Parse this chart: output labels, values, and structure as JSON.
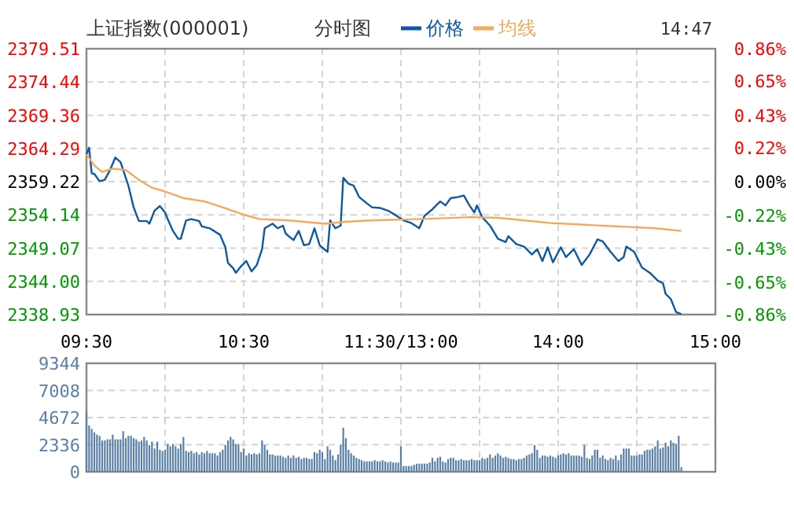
{
  "chart_data": [
    {
      "type": "line",
      "title": "上证指数(000001)",
      "subtitle": "分时图",
      "annotations": [
        "14:47"
      ],
      "legend": "top",
      "grid": true,
      "categories": [
        "09:30",
        null,
        null,
        null,
        null,
        null,
        null,
        null,
        null,
        null,
        null,
        null,
        null,
        null,
        null,
        null,
        null,
        null,
        null,
        null,
        null,
        null,
        null,
        null,
        null,
        null,
        null,
        null,
        null,
        null,
        null,
        null,
        null,
        null,
        null,
        null,
        null,
        null,
        null,
        null,
        null,
        null,
        null,
        null,
        null,
        null,
        null,
        null,
        null,
        null,
        null,
        null,
        null,
        null,
        null,
        null,
        null,
        null,
        null,
        null,
        "10:30",
        null,
        null,
        null,
        null,
        null,
        null,
        null,
        null,
        null,
        null,
        null,
        null,
        null,
        null,
        null,
        null,
        null,
        null,
        null,
        null,
        null,
        null,
        null,
        null,
        null,
        null,
        null,
        null,
        null,
        null,
        null,
        null,
        null,
        null,
        null,
        null,
        null,
        null,
        null,
        null,
        null,
        null,
        null,
        null,
        null,
        null,
        null,
        null,
        null,
        null,
        null,
        null,
        null,
        null,
        null,
        null,
        null,
        null,
        null,
        "11:30/13:00",
        null,
        null,
        null,
        null,
        null,
        null,
        null,
        null,
        null,
        null,
        null,
        null,
        null,
        null,
        null,
        null,
        null,
        null,
        null,
        null,
        null,
        null,
        null,
        null,
        null,
        null,
        null,
        null,
        null,
        null,
        null,
        null,
        null,
        null,
        null,
        null,
        null,
        null,
        null,
        null,
        null,
        null,
        null,
        null,
        null,
        null,
        null,
        null,
        null,
        null,
        null,
        null,
        null,
        null,
        null,
        null,
        null,
        null,
        null,
        "14:00",
        null,
        null,
        null,
        null,
        null,
        null,
        null,
        null,
        null,
        null,
        null,
        null,
        null,
        null,
        null,
        null,
        null,
        null,
        null,
        null,
        null,
        null,
        null,
        null,
        null,
        null,
        null,
        null,
        null,
        null,
        null,
        null,
        null,
        null,
        null,
        null,
        null,
        null,
        null,
        null,
        null,
        null,
        null,
        null,
        null,
        null,
        null,
        null,
        null,
        null,
        null,
        null,
        null,
        null,
        null,
        null,
        null,
        null,
        null,
        "15:00"
      ],
      "ylim": [
        2338.93,
        2379.51
      ],
      "yticks": [
        2338.93,
        {
          "value": 2344,
          "label": "2344.00"
        },
        2349.07,
        2354.14,
        2359.22,
        2364.29,
        2369.36,
        2374.44,
        2379.51
      ],
      "y2lim": [
        -0.86,
        0.86
      ],
      "y2ticks": [
        {
          "value": -0.86,
          "label": "-0.86%"
        },
        {
          "value": -0.65,
          "label": "-0.65%"
        },
        {
          "value": -0.43,
          "label": "-0.43%"
        },
        {
          "value": -0.22,
          "label": "-0.22%"
        },
        {
          "value": 0,
          "label": "0.00%"
        },
        {
          "value": 0.22,
          "label": "0.22%"
        },
        {
          "value": 0.43,
          "label": "0.43%"
        },
        {
          "value": 0.65,
          "label": "0.65%"
        },
        {
          "value": 0.86,
          "label": "0.86%"
        }
      ],
      "series": [
        {
          "name": "价格",
          "color": "#0c5aa6",
          "values": [
            2363.4,
            2364.4,
            2360.5,
            2360.4,
            null,
            2359.3,
            null,
            2359.5,
            null,
            2361.0,
            null,
            2362.9,
            null,
            2362.2,
            2361.0,
            null,
            2358.6,
            null,
            2355.3,
            null,
            2353.2,
            null,
            null,
            2353.2,
            2352.8,
            null,
            2354.8,
            null,
            2355.5,
            null,
            2354.5,
            2353.5,
            null,
            2351.7,
            null,
            2350.5,
            2350.5,
            null,
            2353.3,
            null,
            2353.5,
            null,
            null,
            2353.2,
            2352.4,
            null,
            null,
            2352.1,
            null,
            null,
            null,
            2351.1,
            null,
            2349.2,
            2346.8,
            null,
            2346.0,
            2345.3,
            null,
            2346.3,
            null,
            2347.1,
            null,
            2345.5,
            null,
            2346.5,
            null,
            2348.9,
            2352.1,
            null,
            null,
            2352.8,
            null,
            2352.1,
            null,
            2352.5,
            2351.3,
            null,
            null,
            2350.3,
            null,
            2351.7,
            null,
            2349.5,
            null,
            2349.7,
            null,
            2352.1,
            null,
            2349.5,
            null,
            null,
            2348.5,
            2353.3,
            null,
            2352.1,
            null,
            2352.5,
            2359.8,
            null,
            2358.9,
            null,
            2358.6,
            null,
            2356.9,
            null,
            null,
            2355.9,
            null,
            2355.3,
            null,
            null,
            2355.2,
            null,
            null,
            2354.8,
            null,
            null,
            2354.1,
            null,
            null,
            2353.3,
            null,
            null,
            2352.9,
            null,
            null,
            2352.1,
            null,
            2354.0,
            null,
            null,
            2355.0,
            null,
            null,
            2356.2,
            null,
            2355.6,
            null,
            2356.7,
            null,
            null,
            2356.9,
            null,
            2357.1,
            null,
            2355.7,
            null,
            2354.5,
            2355.6,
            null,
            2353.8,
            null,
            null,
            2352.5,
            null,
            null,
            2350.5,
            null,
            null,
            2350.0,
            2350.9,
            null,
            null,
            2349.7,
            null,
            null,
            2349.3,
            null,
            null,
            2348.1,
            null,
            2348.9,
            null,
            2347.1,
            null,
            2349.2,
            null,
            2346.9,
            null,
            null,
            2349.2,
            null,
            2347.7,
            null,
            null,
            2348.9,
            null,
            null,
            2346.5,
            null,
            null,
            2348.1,
            null,
            null,
            2350.4,
            null,
            2350.1,
            null,
            null,
            2348.5,
            null,
            null,
            2347.1,
            null,
            2347.7,
            2349.3,
            null,
            null,
            2348.5,
            null,
            null,
            2346.1,
            null,
            null,
            2345.3,
            null,
            null,
            2344.1,
            null,
            2343.7,
            2342.1,
            null,
            2341.3,
            null,
            2339.3,
            null,
            2339.0,
            null,
            null,
            null,
            null,
            null,
            null,
            null,
            null,
            null,
            null,
            null,
            null,
            null
          ]
        },
        {
          "name": "均线",
          "color": "#f5a95e",
          "values": [
            2363.4,
            null,
            null,
            2361.7,
            null,
            null,
            2360.7,
            null,
            null,
            null,
            2361.2,
            null,
            null,
            null,
            null,
            2361.0,
            null,
            null,
            null,
            null,
            2359.5,
            null,
            null,
            null,
            null,
            2358.3,
            null,
            null,
            null,
            null,
            2357.7,
            null,
            null,
            null,
            null,
            null,
            null,
            2356.7,
            null,
            null,
            null,
            null,
            null,
            null,
            null,
            2356.2,
            null,
            null,
            null,
            null,
            null,
            null,
            2355.3,
            null,
            null,
            null,
            null,
            null,
            null,
            2354.3,
            null,
            null,
            null,
            null,
            null,
            null,
            2353.5,
            null,
            null,
            null,
            null,
            null,
            null,
            null,
            null,
            null,
            null,
            2353.3,
            null,
            null,
            null,
            null,
            null,
            null,
            null,
            null,
            null,
            null,
            null,
            null,
            null,
            2352.8,
            null,
            null,
            null,
            null,
            null,
            null,
            null,
            2353.1,
            null,
            null,
            null,
            null,
            null,
            null,
            null,
            null,
            null,
            2353.3,
            null,
            null,
            null,
            null,
            null,
            null,
            null,
            null,
            null,
            null,
            null,
            null,
            null,
            null,
            null,
            null,
            null,
            2353.5,
            null,
            null,
            null,
            null,
            null,
            null,
            null,
            null,
            null,
            null,
            null,
            null,
            null,
            null,
            null,
            null,
            null,
            null,
            null,
            2353.8,
            null,
            null,
            null,
            null,
            null,
            null,
            null,
            null,
            null,
            2353.7,
            null,
            null,
            null,
            null,
            null,
            null,
            null,
            null,
            null,
            2353.3,
            null,
            null,
            null,
            null,
            null,
            null,
            null,
            null,
            null,
            2352.9,
            null,
            null,
            null,
            null,
            null,
            null,
            null,
            null,
            null,
            2352.7,
            null,
            null,
            null,
            null,
            null,
            null,
            null,
            null,
            null,
            2352.5,
            null,
            null,
            null,
            null,
            null,
            null,
            null,
            null,
            null,
            2352.3,
            null,
            null,
            null,
            null,
            null,
            null,
            null,
            null,
            null,
            2352.1,
            null,
            null,
            null,
            null,
            null,
            null,
            null,
            null,
            null,
            2351.7,
            null,
            null,
            null,
            null,
            null,
            null,
            null,
            null,
            null,
            null,
            null,
            null,
            null
          ]
        }
      ]
    },
    {
      "type": "bar",
      "color": "#5a80a8",
      "grid": true,
      "tick_labels": "y",
      "categories": [
        null,
        null,
        null,
        null,
        null,
        null,
        null,
        null,
        null,
        null,
        null,
        null,
        null,
        null,
        null,
        null,
        null,
        null,
        null,
        null,
        null,
        null,
        null,
        null,
        null,
        null,
        null,
        null,
        null,
        null,
        null,
        null,
        null,
        null,
        null,
        null,
        null,
        null,
        null,
        null,
        null,
        null,
        null,
        null,
        null,
        null,
        null,
        null,
        null,
        null,
        null,
        null,
        null,
        null,
        null,
        null,
        null,
        null,
        null,
        null,
        null,
        null,
        null,
        null,
        null,
        null,
        null,
        null,
        null,
        null,
        null,
        null,
        null,
        null,
        null,
        null,
        null,
        null,
        null,
        null,
        null,
        null,
        null,
        null,
        null,
        null,
        null,
        null,
        null,
        null,
        null,
        null,
        null,
        null,
        null,
        null,
        null,
        null,
        null,
        null,
        null,
        null,
        null,
        null,
        null,
        null,
        null,
        null,
        null,
        null,
        null,
        null,
        null,
        null,
        null,
        null,
        null,
        null,
        null,
        null,
        null,
        null,
        null,
        null,
        null,
        null,
        null,
        null,
        null,
        null,
        null,
        null,
        null,
        null,
        null,
        null,
        null,
        null,
        null,
        null,
        null,
        null,
        null,
        null,
        null,
        null,
        null,
        null,
        null,
        null,
        null,
        null,
        null,
        null,
        null,
        null,
        null,
        null,
        null,
        null,
        null,
        null,
        null,
        null,
        null,
        null,
        null,
        null,
        null,
        null,
        null,
        null,
        null,
        null,
        null,
        null,
        null,
        null,
        null,
        null,
        null,
        null,
        null,
        null,
        null,
        null,
        null,
        null,
        null,
        null,
        null,
        null,
        null,
        null,
        null,
        null,
        null,
        null,
        null,
        null,
        null,
        null,
        null,
        null,
        null,
        null,
        null,
        null,
        null,
        null,
        null,
        null,
        null,
        null,
        null,
        null,
        null,
        null,
        null,
        null,
        null,
        null,
        null,
        null,
        null,
        null,
        null,
        null,
        null,
        null,
        null,
        null,
        null,
        null,
        null,
        null,
        null,
        null,
        null,
        null,
        null
      ],
      "ylim": [
        0,
        9344
      ],
      "yticks": [
        0,
        2336,
        4672,
        7008,
        9344
      ],
      "values": [
        5200,
        4000,
        3700,
        3400,
        3200,
        3100,
        2700,
        2700,
        2800,
        2800,
        3200,
        2800,
        2800,
        2800,
        3500,
        2900,
        3100,
        3100,
        2900,
        2800,
        2600,
        2700,
        3000,
        2700,
        2300,
        2600,
        2000,
        2600,
        1900,
        1800,
        1900,
        2400,
        2200,
        2400,
        2200,
        2000,
        2400,
        3000,
        1800,
        1700,
        1800,
        1600,
        1700,
        1500,
        1700,
        1600,
        1800,
        1600,
        1600,
        1600,
        1400,
        1700,
        1900,
        2300,
        2700,
        3000,
        2800,
        2400,
        2400,
        1700,
        2000,
        1400,
        1600,
        1500,
        1600,
        1500,
        1600,
        2700,
        2300,
        1900,
        1500,
        1500,
        1400,
        1400,
        1400,
        1300,
        1200,
        1400,
        1200,
        1400,
        1200,
        1300,
        1100,
        1200,
        1200,
        1100,
        1100,
        1700,
        1600,
        1900,
        1700,
        1100,
        2200,
        1900,
        1400,
        1000,
        1500,
        2300,
        3800,
        2900,
        1900,
        1600,
        1400,
        1200,
        1100,
        1000,
        900,
        900,
        900,
        900,
        1000,
        900,
        900,
        1000,
        900,
        800,
        900,
        800,
        800,
        800,
        2200,
        500,
        500,
        500,
        500,
        600,
        700,
        700,
        700,
        700,
        700,
        800,
        1200,
        900,
        1200,
        1300,
        900,
        800,
        1100,
        1200,
        1200,
        1000,
        1000,
        1100,
        1000,
        1000,
        1000,
        1100,
        1000,
        1000,
        1000,
        1200,
        1100,
        1200,
        1500,
        1200,
        1400,
        1600,
        1400,
        1200,
        1300,
        1200,
        1100,
        1100,
        1000,
        1100,
        1100,
        1200,
        1400,
        1500,
        1600,
        2300,
        1900,
        1200,
        1400,
        1400,
        1300,
        1400,
        1300,
        1200,
        1400,
        1500,
        1600,
        1500,
        1600,
        1400,
        1400,
        1400,
        1400,
        1300,
        2300,
        1200,
        1100,
        1400,
        1900,
        1900,
        1200,
        1400,
        1100,
        1000,
        1200,
        1100,
        1400,
        1000,
        1500,
        2000,
        2000,
        2000,
        1400,
        1400,
        1400,
        1500,
        1500,
        1800,
        1900,
        1900,
        2000,
        2200,
        2700,
        2000,
        2100,
        2500,
        2200,
        2700,
        2500,
        2400,
        3100,
        400,
        null,
        null,
        null,
        null,
        null,
        null,
        null,
        null,
        null,
        null,
        null,
        null,
        null
      ]
    }
  ]
}
